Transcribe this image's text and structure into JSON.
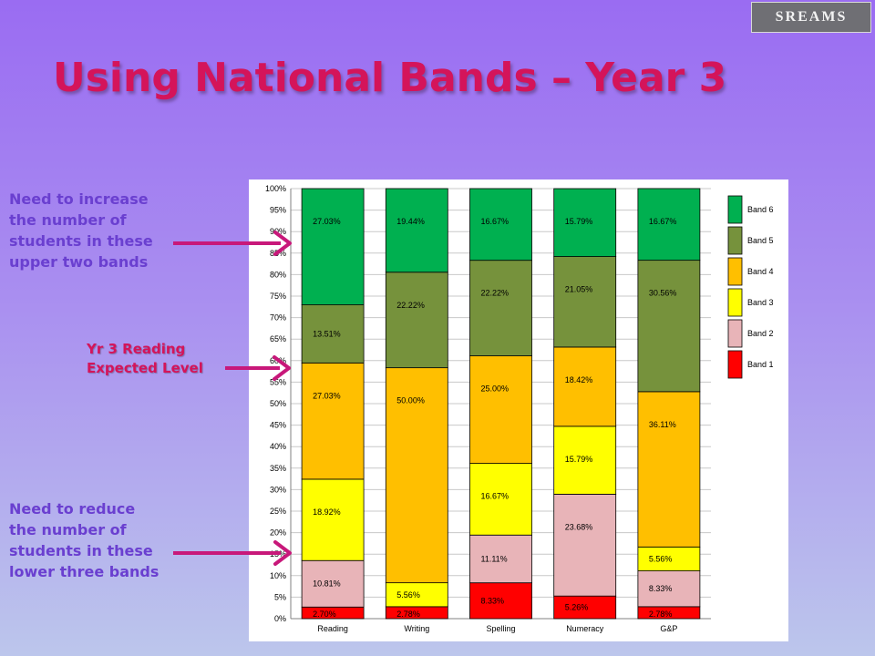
{
  "logo": {
    "text": "SREAMS"
  },
  "title": "Using National Bands – Year 3",
  "notes": {
    "upper": [
      "Need to increase",
      "the number of",
      "students in these",
      "upper two bands"
    ],
    "expected": [
      "Yr 3 Reading",
      "Expected Level"
    ],
    "lower": [
      "Need to reduce",
      "the number of",
      "students in these",
      "lower three bands"
    ]
  },
  "colors": {
    "title": "#d4145a",
    "note_text": "#6a3fd0",
    "arrow": "#c8187a"
  },
  "chart_data": {
    "type": "bar",
    "stacked": true,
    "percent": true,
    "categories": [
      "Reading",
      "Writing",
      "Spelling",
      "Numeracy",
      "G&P"
    ],
    "ylim": [
      0,
      100
    ],
    "yticks": [
      0,
      5,
      10,
      15,
      20,
      25,
      30,
      35,
      40,
      45,
      50,
      55,
      60,
      65,
      70,
      75,
      80,
      85,
      90,
      95,
      100
    ],
    "legend_position": "right",
    "grid": "horizontal",
    "series": [
      {
        "name": "Band 1",
        "color": "#ff0000",
        "values": [
          2.7,
          2.78,
          8.33,
          5.26,
          2.78
        ],
        "labels": [
          "2.70%",
          "2.78%",
          "8.33%",
          "5.26%",
          "2.78%"
        ]
      },
      {
        "name": "Band 2",
        "color": "#e8b4b8",
        "values": [
          10.81,
          0,
          11.11,
          23.68,
          8.33
        ],
        "labels": [
          "10.81%",
          "",
          "11.11%",
          "23.68%",
          "8.33%"
        ]
      },
      {
        "name": "Band 3",
        "color": "#ffff00",
        "values": [
          18.92,
          5.56,
          16.67,
          15.79,
          5.56
        ],
        "labels": [
          "18.92%",
          "5.56%",
          "16.67%",
          "15.79%",
          "5.56%"
        ]
      },
      {
        "name": "Band 4",
        "color": "#ffbf00",
        "values": [
          27.03,
          50.0,
          25.0,
          18.42,
          36.11
        ],
        "labels": [
          "27.03%",
          "50.00%",
          "25.00%",
          "18.42%",
          "36.11%"
        ]
      },
      {
        "name": "Band 5",
        "color": "#76923c",
        "values": [
          13.51,
          22.22,
          22.22,
          21.05,
          30.56
        ],
        "labels": [
          "13.51%",
          "22.22%",
          "22.22%",
          "21.05%",
          "30.56%"
        ]
      },
      {
        "name": "Band 6",
        "color": "#00b050",
        "values": [
          27.03,
          19.44,
          16.67,
          15.79,
          16.67
        ],
        "labels": [
          "27.03%",
          "19.44%",
          "16.67%",
          "15.79%",
          "16.67%"
        ]
      }
    ]
  }
}
